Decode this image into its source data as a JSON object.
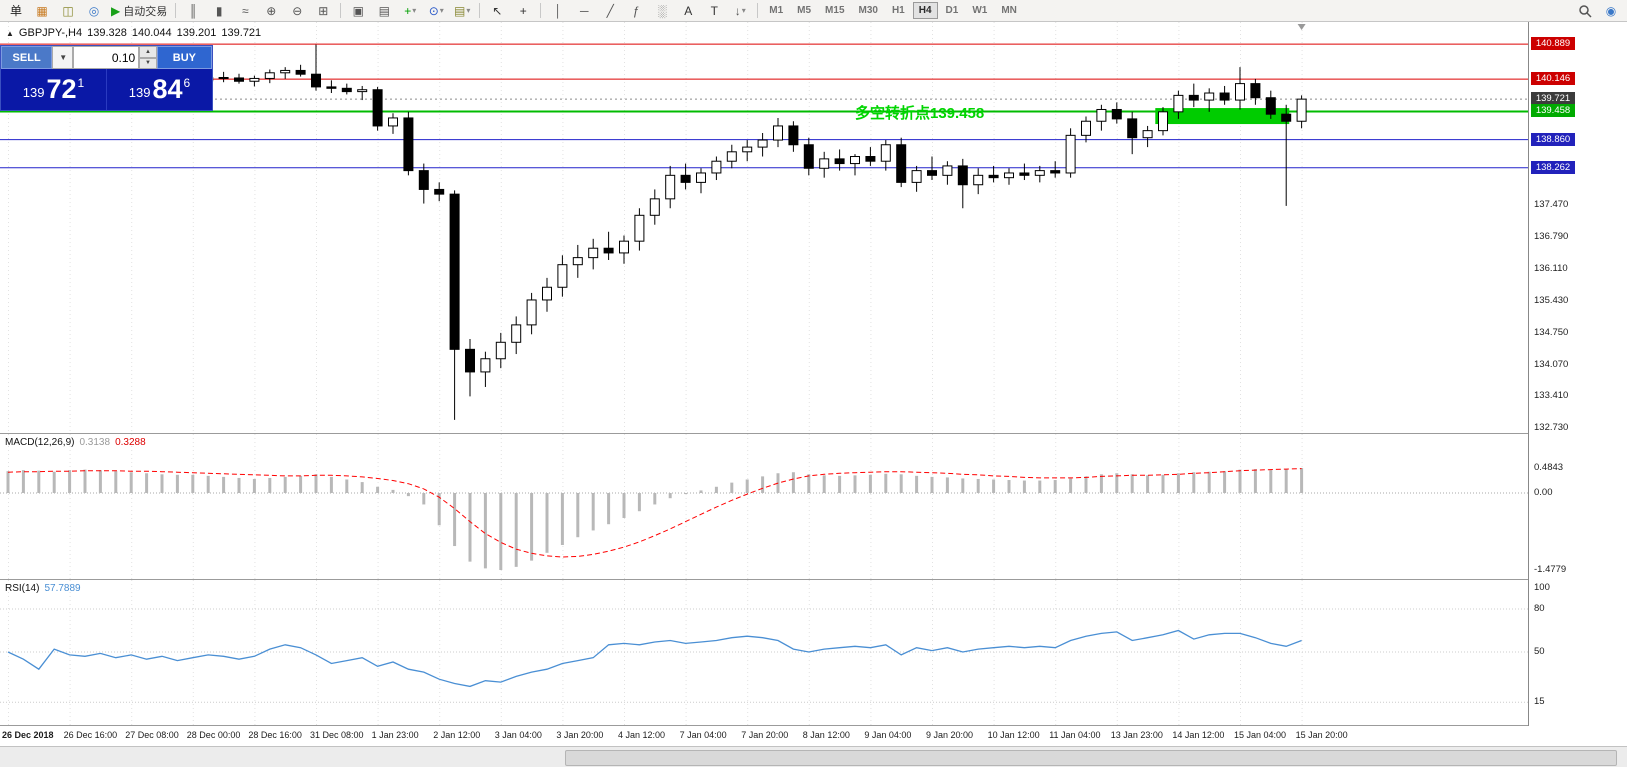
{
  "toolbar": {
    "dropdown_glyph": "▾",
    "groups": [
      {
        "items": [
          {
            "name": "new-order-button",
            "glyph": "单",
            "color": "#222222"
          },
          {
            "name": "new-chart-icon",
            "glyph": "▦",
            "color": "#c87a20"
          },
          {
            "name": "profiles-icon",
            "glyph": "◫",
            "color": "#8a8a30"
          },
          {
            "name": "refresh-icon",
            "glyph": "◎",
            "color": "#3a78c8"
          },
          {
            "name": "autotrading-button",
            "glyph": "▶",
            "label": "自动交易",
            "color": "#18a018"
          }
        ]
      },
      {
        "items": [
          {
            "name": "bar-chart-icon",
            "glyph": "║",
            "color": "#555555"
          },
          {
            "name": "candlestick-chart-icon",
            "glyph": "▮",
            "color": "#555555"
          },
          {
            "name": "line-chart-icon",
            "glyph": "≈",
            "color": "#555555"
          },
          {
            "name": "zoom-in-icon",
            "glyph": "⊕",
            "color": "#555555"
          },
          {
            "name": "zoom-out-icon",
            "glyph": "⊖",
            "color": "#555555"
          },
          {
            "name": "tile-windows-icon",
            "glyph": "⊞",
            "color": "#555555"
          }
        ]
      },
      {
        "items": [
          {
            "name": "auto-arrange-icon",
            "glyph": "▣",
            "color": "#555555"
          },
          {
            "name": "arrange-windows-icon",
            "glyph": "▤",
            "color": "#555555"
          },
          {
            "name": "add-indicator-button",
            "glyph": "+",
            "color": "#00a000",
            "dropdown": true
          },
          {
            "name": "periods-button",
            "glyph": "⊙",
            "color": "#2858c8",
            "dropdown": true
          },
          {
            "name": "templates-button",
            "glyph": "▤",
            "color": "#888833",
            "dropdown": true
          }
        ]
      },
      {
        "items": [
          {
            "name": "cursor-icon",
            "glyph": "↖",
            "color": "#333333"
          },
          {
            "name": "crosshair-icon",
            "glyph": "+",
            "color": "#333333"
          }
        ]
      },
      {
        "items": [
          {
            "name": "vertical-line-icon",
            "glyph": "│",
            "color": "#555555"
          },
          {
            "name": "horizontal-line-icon",
            "glyph": "─",
            "color": "#555555"
          },
          {
            "name": "trendline-icon",
            "glyph": "╱",
            "color": "#555555"
          },
          {
            "name": "fibonacci-icon",
            "glyph": "ƒ",
            "color": "#555555"
          },
          {
            "name": "objects-list-icon",
            "glyph": "░",
            "color": "#555555"
          },
          {
            "name": "text-icon",
            "glyph": "A",
            "color": "#333333"
          },
          {
            "name": "text-label-icon",
            "glyph": "T",
            "color": "#333333"
          },
          {
            "name": "arrow-objects-button",
            "glyph": "↓",
            "color": "#555555",
            "dropdown": true
          }
        ]
      }
    ],
    "timeframes": [
      "M1",
      "M5",
      "M15",
      "M30",
      "H1",
      "H4",
      "D1",
      "W1",
      "MN"
    ],
    "active_timeframe": "H4",
    "right_icons": [
      {
        "name": "search-icon",
        "kind": "search"
      },
      {
        "name": "community-icon",
        "glyph": "◉",
        "color": "#3a78c8"
      }
    ]
  },
  "chart_header": {
    "toggle": "▲",
    "symbol": "GBPJPY-,H4",
    "open": "139.328",
    "high": "140.044",
    "low": "139.201",
    "close": "139.721"
  },
  "trade_panel": {
    "sell_label": "SELL",
    "buy_label": "BUY",
    "lot_size": "0.10",
    "dropdown_glyph": "▼",
    "spin_up_glyph": "▲",
    "spin_down_glyph": "▼",
    "sell_price": {
      "prefix": "139",
      "pips": "72",
      "pipette": "1"
    },
    "buy_price": {
      "prefix": "139",
      "pips": "84",
      "pipette": "6"
    }
  },
  "annotation": {
    "text": "多空转折点139.458",
    "color": "#00d500"
  },
  "indicator_labels": {
    "macd_name": "MACD(12,26,9)",
    "macd_value1": "0.3138",
    "macd_value2": "0.3288",
    "macd_value1_color": "#9a9a9a",
    "macd_value2_color": "#dd0000",
    "rsi_name": "RSI(14)",
    "rsi_value": "57.7889",
    "rsi_value_color": "#4a8fd4"
  },
  "price_axis_plain": [
    {
      "price": 137.47,
      "label": "137.470"
    },
    {
      "price": 136.79,
      "label": "136.790"
    },
    {
      "price": 136.11,
      "label": "136.110"
    },
    {
      "price": 135.43,
      "label": "135.430"
    },
    {
      "price": 134.75,
      "label": "134.750"
    },
    {
      "price": 134.07,
      "label": "134.070"
    },
    {
      "price": 133.41,
      "label": "133.410"
    },
    {
      "price": 132.73,
      "label": "132.730"
    }
  ],
  "macd_axis": [
    {
      "value": 0.4843,
      "label": "0.4843"
    },
    {
      "value": 0.0,
      "label": "0.00"
    },
    {
      "value": -1.4779,
      "label": "-1.4779"
    }
  ],
  "rsi_axis": [
    {
      "value": 100,
      "label": "100"
    },
    {
      "value": 80,
      "label": "80"
    },
    {
      "value": 50,
      "label": "50"
    },
    {
      "value": 15,
      "label": "15"
    }
  ],
  "time_axis": {
    "bar_step": 4,
    "labels": [
      "26 Dec 2018",
      "26 Dec 16:00",
      "27 Dec 08:00",
      "28 Dec 00:00",
      "28 Dec 16:00",
      "31 Dec 08:00",
      "1 Jan 23:00",
      "2 Jan 12:00",
      "3 Jan 04:00",
      "3 Jan 20:00",
      "4 Jan 12:00",
      "7 Jan 04:00",
      "7 Jan 20:00",
      "8 Jan 12:00",
      "9 Jan 04:00",
      "9 Jan 20:00",
      "10 Jan 12:00",
      "11 Jan 04:00",
      "13 Jan 23:00",
      "14 Jan 12:00",
      "15 Jan 04:00",
      "15 Jan 20:00"
    ]
  },
  "chart_data": [
    {
      "type": "candlestick",
      "title": "GBPJPY- H4",
      "ylim": [
        132.6,
        141.36
      ],
      "bar_origin_x": 8,
      "bar_spacing": 15.4,
      "up_color": "#ffffff",
      "down_color": "#000000",
      "outline_color": "#000000",
      "levels": [
        {
          "price": 140.889,
          "label": "140.889",
          "line_color": "#dd0000",
          "line_style": "solid",
          "badge_bg": "#cc0000"
        },
        {
          "price": 140.146,
          "label": "140.146",
          "line_color": "#dd0000",
          "line_style": "solid",
          "badge_bg": "#cc0000"
        },
        {
          "price": 139.721,
          "label": "139.721",
          "line_color": "#8a8a8a",
          "line_style": "dotted",
          "badge_bg": "#3c3c3c"
        },
        {
          "price": 139.458,
          "label": "139.458",
          "line_color": "#00bb00",
          "line_style": "solid",
          "line_width": 2,
          "badge_bg": "#00aa00"
        },
        {
          "price": 138.86,
          "label": "138.860",
          "line_color": "#2222cc",
          "line_style": "solid",
          "badge_bg": "#2222bb"
        },
        {
          "price": 138.262,
          "label": "138.262",
          "line_color": "#2222cc",
          "line_style": "solid",
          "badge_bg": "#2222bb"
        }
      ],
      "zone": {
        "bar_start": 74.5,
        "bar_end": 83.2,
        "price_top": 139.53,
        "price_bottom": 139.19,
        "color": "#00cc00"
      },
      "candles": [
        [
          139.95,
          140.1,
          139.8,
          140.02
        ],
        [
          140.02,
          140.15,
          139.9,
          139.96
        ],
        [
          139.96,
          140.08,
          139.85,
          140.05
        ],
        [
          140.05,
          140.2,
          139.98,
          140.12
        ],
        [
          140.12,
          140.25,
          140.0,
          140.08
        ],
        [
          140.08,
          140.18,
          139.92,
          139.98
        ],
        [
          139.98,
          140.1,
          139.88,
          140.06
        ],
        [
          140.06,
          140.22,
          139.99,
          140.15
        ],
        [
          140.15,
          140.28,
          140.05,
          140.1
        ],
        [
          140.1,
          140.2,
          139.95,
          140.02
        ],
        [
          140.02,
          140.12,
          139.9,
          139.97
        ],
        [
          139.97,
          140.08,
          139.85,
          140.04
        ],
        [
          140.04,
          140.18,
          139.96,
          140.11
        ],
        [
          140.11,
          140.24,
          140.02,
          140.18
        ],
        [
          140.18,
          140.3,
          140.08,
          140.17
        ],
        [
          140.17,
          140.26,
          140.05,
          140.1
        ],
        [
          140.1,
          140.22,
          139.99,
          140.16
        ],
        [
          140.16,
          140.35,
          140.06,
          140.28
        ],
        [
          140.28,
          140.4,
          140.15,
          140.33
        ],
        [
          140.33,
          140.45,
          140.2,
          140.25
        ],
        [
          140.25,
          140.88,
          139.9,
          139.98
        ],
        [
          139.98,
          140.12,
          139.85,
          139.95
        ],
        [
          139.95,
          140.05,
          139.82,
          139.88
        ],
        [
          139.88,
          140.0,
          139.7,
          139.92
        ],
        [
          139.92,
          139.98,
          139.05,
          139.15
        ],
        [
          139.15,
          139.42,
          138.98,
          139.32
        ],
        [
          139.32,
          139.45,
          138.1,
          138.2
        ],
        [
          138.2,
          138.35,
          137.5,
          137.8
        ],
        [
          137.8,
          137.95,
          137.55,
          137.7
        ],
        [
          137.7,
          137.78,
          132.9,
          134.4
        ],
        [
          134.4,
          134.62,
          133.4,
          133.92
        ],
        [
          133.92,
          134.35,
          133.6,
          134.2
        ],
        [
          134.2,
          134.75,
          134.0,
          134.55
        ],
        [
          134.55,
          135.1,
          134.3,
          134.92
        ],
        [
          134.92,
          135.6,
          134.72,
          135.45
        ],
        [
          135.45,
          135.92,
          135.2,
          135.72
        ],
        [
          135.72,
          136.4,
          135.52,
          136.2
        ],
        [
          136.2,
          136.62,
          135.92,
          136.35
        ],
        [
          136.35,
          136.75,
          136.1,
          136.55
        ],
        [
          136.55,
          136.9,
          136.3,
          136.45
        ],
        [
          136.45,
          136.82,
          136.22,
          136.7
        ],
        [
          136.7,
          137.4,
          136.5,
          137.25
        ],
        [
          137.25,
          137.8,
          137.05,
          137.6
        ],
        [
          137.6,
          138.3,
          137.4,
          138.1
        ],
        [
          138.1,
          138.35,
          137.8,
          137.95
        ],
        [
          137.95,
          138.25,
          137.72,
          138.15
        ],
        [
          138.15,
          138.5,
          138.0,
          138.4
        ],
        [
          138.4,
          138.75,
          138.25,
          138.6
        ],
        [
          138.6,
          138.85,
          138.4,
          138.7
        ],
        [
          138.7,
          139.0,
          138.5,
          138.85
        ],
        [
          138.85,
          139.32,
          138.7,
          139.15
        ],
        [
          139.15,
          139.25,
          138.6,
          138.75
        ],
        [
          138.75,
          138.9,
          138.1,
          138.25
        ],
        [
          138.25,
          138.6,
          138.05,
          138.45
        ],
        [
          138.45,
          138.65,
          138.2,
          138.35
        ],
        [
          138.35,
          138.55,
          138.1,
          138.5
        ],
        [
          138.5,
          138.7,
          138.3,
          138.4
        ],
        [
          138.4,
          138.85,
          138.2,
          138.75
        ],
        [
          138.75,
          138.9,
          137.85,
          137.95
        ],
        [
          137.95,
          138.3,
          137.75,
          138.2
        ],
        [
          138.2,
          138.5,
          138.0,
          138.1
        ],
        [
          138.1,
          138.4,
          137.9,
          138.3
        ],
        [
          138.3,
          138.45,
          137.4,
          137.9
        ],
        [
          137.9,
          138.25,
          137.7,
          138.1
        ],
        [
          138.1,
          138.3,
          137.95,
          138.05
        ],
        [
          138.05,
          138.25,
          137.9,
          138.15
        ],
        [
          138.15,
          138.35,
          138.0,
          138.1
        ],
        [
          138.1,
          138.3,
          137.95,
          138.2
        ],
        [
          138.2,
          138.4,
          138.05,
          138.15
        ],
        [
          138.15,
          139.1,
          138.05,
          138.95
        ],
        [
          138.95,
          139.35,
          138.8,
          139.25
        ],
        [
          139.25,
          139.6,
          139.05,
          139.5
        ],
        [
          139.5,
          139.65,
          139.2,
          139.3
        ],
        [
          139.3,
          139.45,
          138.55,
          138.9
        ],
        [
          138.9,
          139.15,
          138.7,
          139.05
        ],
        [
          139.05,
          139.55,
          138.95,
          139.45
        ],
        [
          139.45,
          139.9,
          139.3,
          139.8
        ],
        [
          139.8,
          140.05,
          139.55,
          139.7
        ],
        [
          139.7,
          139.95,
          139.45,
          139.85
        ],
        [
          139.85,
          140.0,
          139.6,
          139.7
        ],
        [
          139.7,
          140.4,
          139.5,
          140.05
        ],
        [
          140.05,
          140.15,
          139.6,
          139.75
        ],
        [
          139.75,
          139.9,
          139.3,
          139.4
        ],
        [
          139.4,
          139.6,
          137.45,
          139.25
        ],
        [
          139.25,
          139.8,
          139.1,
          139.72
        ]
      ]
    },
    {
      "type": "bar",
      "name": "MACD histogram",
      "color": "#b8b8b8",
      "ylim": [
        -1.673,
        1.135
      ],
      "values": [
        0.42,
        0.44,
        0.43,
        0.41,
        0.44,
        0.45,
        0.44,
        0.42,
        0.4,
        0.38,
        0.36,
        0.35,
        0.35,
        0.33,
        0.31,
        0.29,
        0.27,
        0.29,
        0.31,
        0.33,
        0.36,
        0.31,
        0.26,
        0.21,
        0.12,
        0.06,
        -0.06,
        -0.22,
        -0.62,
        -1.02,
        -1.32,
        -1.45,
        -1.48,
        -1.42,
        -1.3,
        -1.15,
        -1.0,
        -0.85,
        -0.72,
        -0.6,
        -0.48,
        -0.35,
        -0.22,
        -0.1,
        -0.02,
        0.05,
        0.12,
        0.2,
        0.26,
        0.32,
        0.38,
        0.4,
        0.36,
        0.34,
        0.33,
        0.34,
        0.35,
        0.37,
        0.36,
        0.33,
        0.31,
        0.3,
        0.28,
        0.27,
        0.26,
        0.25,
        0.24,
        0.24,
        0.25,
        0.28,
        0.32,
        0.36,
        0.38,
        0.36,
        0.34,
        0.35,
        0.38,
        0.4,
        0.41,
        0.42,
        0.45,
        0.46,
        0.44,
        0.46,
        0.48
      ]
    },
    {
      "type": "line",
      "name": "MACD signal",
      "color": "#ff0000",
      "style": "dashed",
      "values": [
        0.4,
        0.41,
        0.41,
        0.42,
        0.42,
        0.43,
        0.43,
        0.43,
        0.42,
        0.42,
        0.41,
        0.4,
        0.39,
        0.38,
        0.37,
        0.36,
        0.35,
        0.34,
        0.33,
        0.33,
        0.34,
        0.34,
        0.33,
        0.31,
        0.28,
        0.24,
        0.18,
        0.08,
        -0.08,
        -0.3,
        -0.55,
        -0.78,
        -0.95,
        -1.08,
        -1.16,
        -1.21,
        -1.23,
        -1.22,
        -1.18,
        -1.12,
        -1.04,
        -0.94,
        -0.82,
        -0.69,
        -0.55,
        -0.41,
        -0.27,
        -0.14,
        -0.02,
        0.09,
        0.19,
        0.27,
        0.33,
        0.36,
        0.38,
        0.39,
        0.4,
        0.41,
        0.41,
        0.4,
        0.39,
        0.38,
        0.36,
        0.35,
        0.33,
        0.32,
        0.3,
        0.29,
        0.29,
        0.29,
        0.3,
        0.32,
        0.33,
        0.34,
        0.34,
        0.35,
        0.36,
        0.38,
        0.39,
        0.41,
        0.43,
        0.44,
        0.45,
        0.46,
        0.47
      ]
    },
    {
      "type": "line",
      "name": "RSI",
      "color": "#4a8fd4",
      "ylim": [
        -1.6,
        100.2
      ],
      "levels": [
        80,
        50,
        15
      ],
      "values": [
        50,
        45,
        38,
        52,
        48,
        47,
        49,
        46,
        48,
        45,
        47,
        44,
        46,
        48,
        47,
        45,
        47,
        52,
        55,
        53,
        48,
        42,
        44,
        46,
        40,
        43,
        38,
        36,
        31,
        28,
        26,
        30,
        29,
        33,
        36,
        38,
        42,
        44,
        46,
        55,
        56,
        55,
        57,
        58,
        56,
        57,
        58,
        60,
        61,
        60,
        58,
        52,
        50,
        52,
        53,
        54,
        53,
        55,
        48,
        53,
        51,
        53,
        50,
        52,
        53,
        54,
        53,
        54,
        53,
        58,
        61,
        63,
        64,
        58,
        60,
        62,
        65,
        59,
        62,
        63,
        63,
        60,
        56,
        54,
        58
      ]
    }
  ]
}
